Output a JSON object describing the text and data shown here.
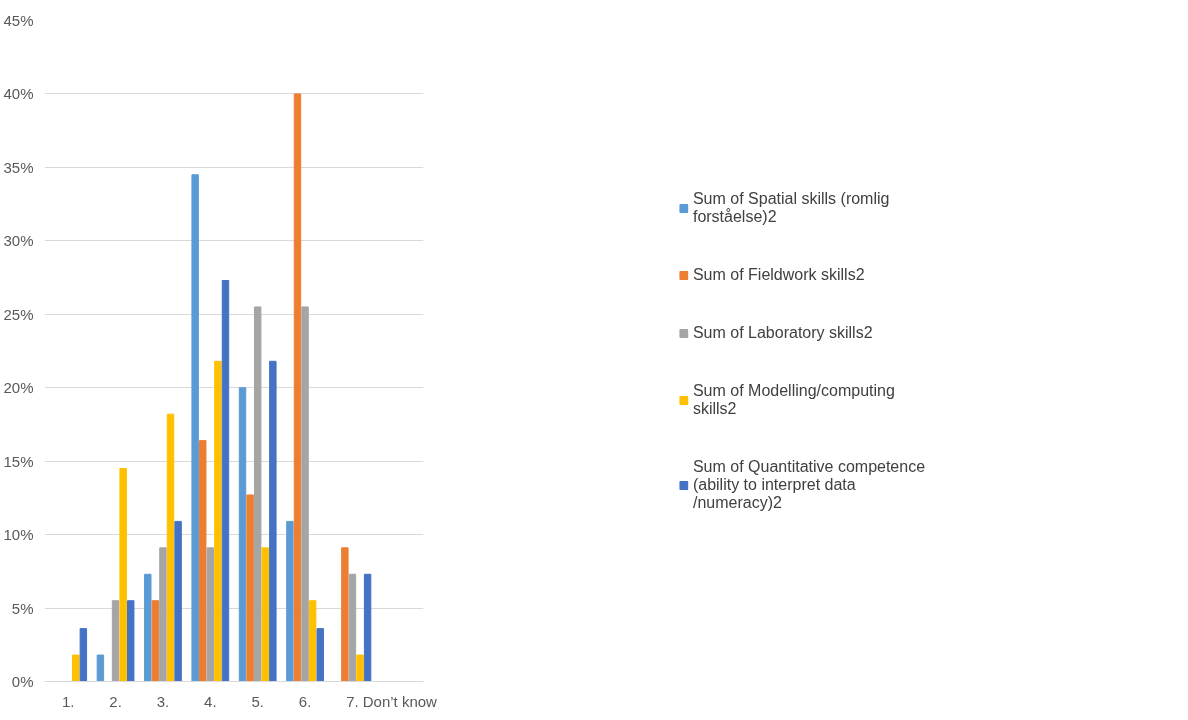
{
  "chart_data": {
    "type": "bar",
    "categories": [
      "1.",
      "2.",
      "3.",
      "4.",
      "5.",
      "6.",
      "7.",
      "Don’t know"
    ],
    "series": [
      {
        "name": "Sum of Spatial skills (romlig forståelse)2",
        "color": "#5b9bd5",
        "values": [
          0,
          1.8,
          7.3,
          34.5,
          20,
          10.9,
          0,
          0
        ]
      },
      {
        "name": "Sum of Fieldwork skills2",
        "color": "#ed7d31",
        "values": [
          0,
          0,
          5.5,
          16.4,
          12.7,
          40,
          9.1,
          0
        ]
      },
      {
        "name": "Sum of Laboratory skills2",
        "color": "#a5a5a5",
        "values": [
          0,
          5.5,
          9.1,
          9.1,
          25.5,
          25.5,
          7.3,
          0
        ]
      },
      {
        "name": "Sum of Modelling/computing skills2",
        "color": "#ffc000",
        "values": [
          1.8,
          14.5,
          18.2,
          21.8,
          9.1,
          5.5,
          1.8,
          0
        ]
      },
      {
        "name": "Sum of Quantitative competence (ability to interpret data /numeracy)2",
        "color": "#4472c4",
        "values": [
          3.6,
          5.5,
          10.9,
          27.3,
          21.8,
          3.6,
          7.3,
          0
        ]
      }
    ],
    "ylim": [
      0,
      45
    ],
    "yticks": [
      {
        "value": 0,
        "label": "0%"
      },
      {
        "value": 5,
        "label": "5%"
      },
      {
        "value": 10,
        "label": "10%"
      },
      {
        "value": 15,
        "label": "15%"
      },
      {
        "value": 20,
        "label": "20%"
      },
      {
        "value": 25,
        "label": "25%"
      },
      {
        "value": 30,
        "label": "30%"
      },
      {
        "value": 35,
        "label": "35%"
      },
      {
        "value": 40,
        "label": "40%"
      },
      {
        "value": 45,
        "label": "45%"
      }
    ],
    "grid": "y",
    "legend": "right"
  }
}
